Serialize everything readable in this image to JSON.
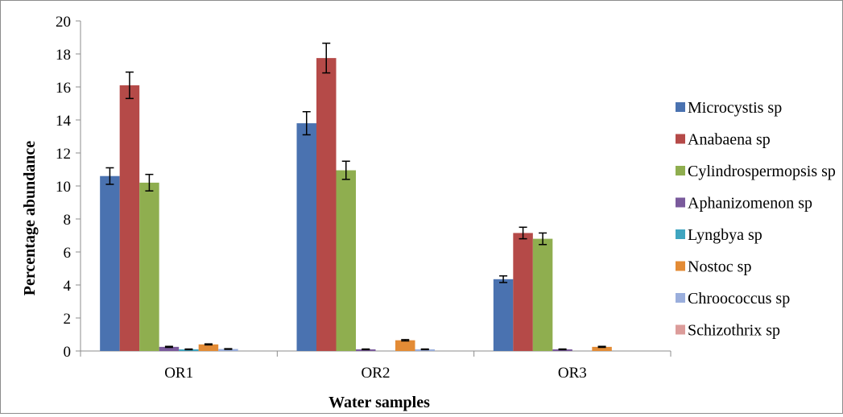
{
  "chart_data": {
    "type": "bar",
    "title": "",
    "xlabel": "Water samples",
    "ylabel": "Percentage abundance",
    "ylim": [
      0,
      20
    ],
    "yticks": [
      0,
      2,
      4,
      6,
      8,
      10,
      12,
      14,
      16,
      18,
      20
    ],
    "categories": [
      "OR1",
      "OR2",
      "OR3"
    ],
    "legend_position": "right",
    "grid": false,
    "error_bars": true,
    "series": [
      {
        "name": "Microcystis sp",
        "color": "#4a72b0",
        "values": [
          10.6,
          13.8,
          4.35
        ],
        "errors": [
          0.5,
          0.7,
          0.2
        ]
      },
      {
        "name": "Anabaena sp",
        "color": "#b54a48",
        "values": [
          16.1,
          17.75,
          7.15
        ],
        "errors": [
          0.8,
          0.9,
          0.35
        ]
      },
      {
        "name": "Cylindrospermopsis sp",
        "color": "#8fae4f",
        "values": [
          10.2,
          10.95,
          6.8
        ],
        "errors": [
          0.5,
          0.55,
          0.35
        ]
      },
      {
        "name": "Aphanizomenon sp",
        "color": "#7a5a9c",
        "values": [
          0.25,
          0.1,
          0.1
        ],
        "errors": [
          0.03,
          0.02,
          0.02
        ]
      },
      {
        "name": "Lyngbya sp",
        "color": "#3fa5c0",
        "values": [
          0.1,
          0.0,
          0.0
        ],
        "errors": [
          0.02,
          0.0,
          0.0
        ]
      },
      {
        "name": "Nostoc sp",
        "color": "#e38b35",
        "values": [
          0.4,
          0.65,
          0.25
        ],
        "errors": [
          0.03,
          0.04,
          0.03
        ]
      },
      {
        "name": "Chroococcus sp",
        "color": "#9aaedc",
        "values": [
          0.12,
          0.1,
          0.0
        ],
        "errors": [
          0.02,
          0.02,
          0.0
        ]
      },
      {
        "name": "Schizothrix sp",
        "color": "#dc9c9a",
        "values": [
          0.0,
          0.0,
          0.0
        ],
        "errors": [
          0.0,
          0.0,
          0.0
        ]
      }
    ]
  }
}
